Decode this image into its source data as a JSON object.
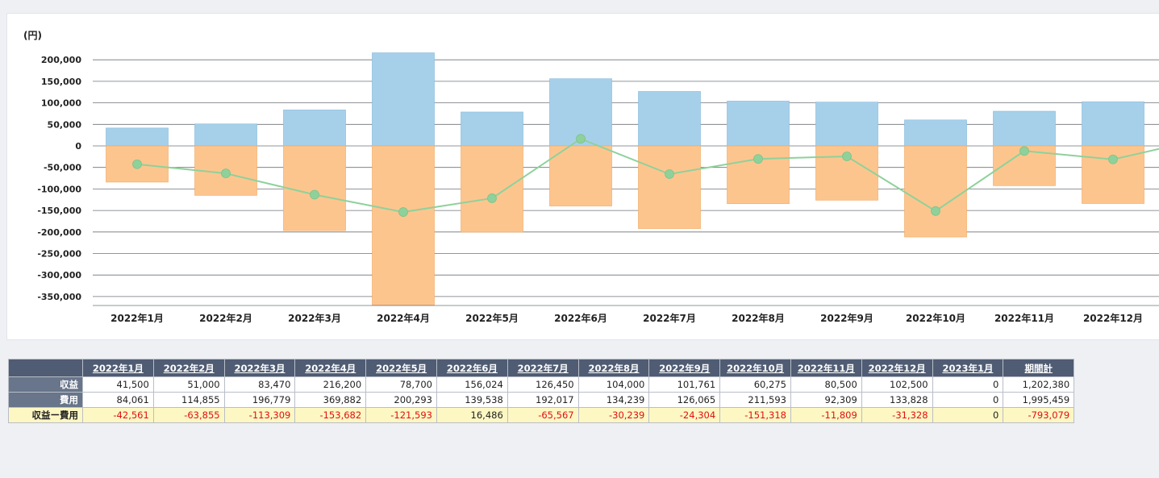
{
  "chart_data": {
    "type": "bar",
    "unit_label": "(円)",
    "categories": [
      "2022年1月",
      "2022年2月",
      "2022年3月",
      "2022年4月",
      "2022年5月",
      "2022年6月",
      "2022年7月",
      "2022年8月",
      "2022年9月",
      "2022年10月",
      "2022年11月",
      "2022年12月"
    ],
    "y_ticks": [
      "200,000",
      "150,000",
      "100,000",
      "50,000",
      "0",
      "-50,000",
      "-100,000",
      "-150,000",
      "-200,000",
      "-250,000",
      "-300,000",
      "-350,000"
    ],
    "ylim": [
      -370000,
      200000
    ],
    "grid": true,
    "series": [
      {
        "type": "bar",
        "color": "#a6d0ea",
        "values": [
          41500,
          51000,
          83470,
          216200,
          78700,
          156024,
          126450,
          104000,
          101761,
          60275,
          80500,
          102500
        ]
      },
      {
        "type": "bar",
        "color": "#fdc58e",
        "values": [
          -84061,
          -114855,
          -196779,
          -369882,
          -200293,
          -139538,
          -192017,
          -134239,
          -126065,
          -211593,
          -92309,
          -133828
        ]
      },
      {
        "type": "line",
        "color": "#8fd19b",
        "values": [
          -42561,
          -63855,
          -113309,
          -153682,
          -121593,
          16486,
          -65567,
          -30239,
          -24304,
          -151318,
          -11809,
          -31328
        ]
      }
    ]
  },
  "table": {
    "headers": [
      "2022年1月",
      "2022年2月",
      "2022年3月",
      "2022年4月",
      "2022年5月",
      "2022年6月",
      "2022年7月",
      "2022年8月",
      "2022年9月",
      "2022年10月",
      "2022年11月",
      "2022年12月",
      "2023年1月",
      "期間計"
    ],
    "rows": [
      {
        "label": "収益",
        "values": [
          "41,500",
          "51,000",
          "83,470",
          "216,200",
          "78,700",
          "156,024",
          "126,450",
          "104,000",
          "101,761",
          "60,275",
          "80,500",
          "102,500",
          "0",
          "1,202,380"
        ]
      },
      {
        "label": "費用",
        "values": [
          "84,061",
          "114,855",
          "196,779",
          "369,882",
          "200,293",
          "139,538",
          "192,017",
          "134,239",
          "126,065",
          "211,593",
          "92,309",
          "133,828",
          "0",
          "1,995,459"
        ]
      },
      {
        "label": "収益ー費用",
        "values": [
          "-42,561",
          "-63,855",
          "-113,309",
          "-153,682",
          "-121,593",
          "16,486",
          "-65,567",
          "-30,239",
          "-24,304",
          "-151,318",
          "-11,809",
          "-31,328",
          "0",
          "-793,079"
        ]
      }
    ]
  }
}
